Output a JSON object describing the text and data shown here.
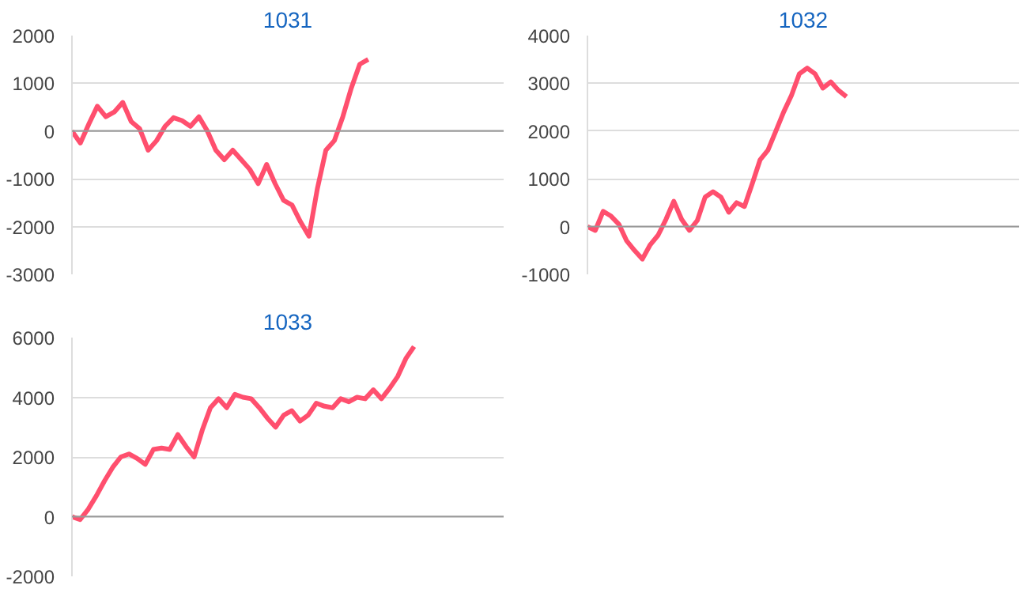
{
  "chart_data": [
    {
      "type": "line",
      "title": "1031",
      "categories": [
        null,
        null,
        null,
        null,
        null,
        null,
        null,
        null,
        null,
        null,
        null,
        null,
        null,
        null,
        null,
        null,
        null,
        null,
        null,
        null,
        null,
        null,
        null,
        null,
        null,
        null,
        null,
        null,
        null,
        null,
        null,
        null,
        null,
        null,
        null,
        null,
        null,
        null,
        null,
        null,
        null,
        null,
        null,
        null,
        null,
        null,
        null,
        null,
        null,
        null,
        null,
        null
      ],
      "series": [
        {
          "color": "#ff4f6e",
          "values": [
            0,
            -250,
            150,
            520,
            300,
            400,
            600,
            200,
            50,
            -400,
            -200,
            100,
            280,
            220,
            100,
            300,
            0,
            -400,
            -600,
            -400,
            -600,
            -800,
            -1100,
            -700,
            -1100,
            -1450,
            -1550,
            -1900,
            -2200,
            -1200,
            -400,
            -200,
            300,
            900,
            1400,
            1500,
            null,
            null,
            null,
            null,
            null,
            null,
            null,
            null,
            null,
            null,
            null,
            null,
            null,
            null,
            null,
            null
          ]
        }
      ],
      "ylim": [
        -3000,
        2000
      ],
      "yticks": [
        -3000,
        -2000,
        -1000,
        0,
        1000,
        2000
      ],
      "grid": "y",
      "tick_labels": "y",
      "line_style": "solid",
      "marker": "none"
    },
    {
      "type": "line",
      "title": "1032",
      "categories": [
        null,
        null,
        null,
        null,
        null,
        null,
        null,
        null,
        null,
        null,
        null,
        null,
        null,
        null,
        null,
        null,
        null,
        null,
        null,
        null,
        null,
        null,
        null,
        null,
        null,
        null,
        null,
        null,
        null,
        null,
        null,
        null,
        null,
        null,
        null,
        null,
        null,
        null,
        null,
        null,
        null,
        null,
        null,
        null,
        null,
        null,
        null,
        null,
        null,
        null,
        null,
        null,
        null,
        null,
        null,
        null
      ],
      "series": [
        {
          "color": "#ff4f6e",
          "values": [
            0,
            -80,
            320,
            220,
            50,
            -300,
            -500,
            -680,
            -380,
            -180,
            150,
            530,
            150,
            -80,
            130,
            620,
            730,
            620,
            300,
            500,
            420,
            900,
            1400,
            1600,
            2000,
            2400,
            2750,
            3200,
            3320,
            3200,
            2900,
            3030,
            2850,
            2720,
            null,
            null,
            null,
            null,
            null,
            null,
            null,
            null,
            null,
            null,
            null,
            null,
            null,
            null,
            null,
            null,
            null,
            null,
            null,
            null,
            null,
            null
          ]
        }
      ],
      "ylim": [
        -1000,
        4000
      ],
      "yticks": [
        -1000,
        0,
        1000,
        2000,
        3000,
        4000
      ],
      "grid": "y",
      "tick_labels": "y",
      "line_style": "solid",
      "marker": "none"
    },
    {
      "type": "line",
      "title": "1033",
      "categories": [
        null,
        null,
        null,
        null,
        null,
        null,
        null,
        null,
        null,
        null,
        null,
        null,
        null,
        null,
        null,
        null,
        null,
        null,
        null,
        null,
        null,
        null,
        null,
        null,
        null,
        null,
        null,
        null,
        null,
        null,
        null,
        null,
        null,
        null,
        null,
        null,
        null,
        null,
        null,
        null,
        null,
        null,
        null,
        null,
        null,
        null,
        null,
        null,
        null,
        null,
        null,
        null,
        null,
        null
      ],
      "series": [
        {
          "color": "#ff4f6e",
          "values": [
            0,
            -100,
            250,
            700,
            1200,
            1650,
            2000,
            2100,
            1950,
            1750,
            2250,
            2300,
            2250,
            2750,
            2350,
            2000,
            2900,
            3650,
            3950,
            3650,
            4100,
            4000,
            3950,
            3650,
            3300,
            3000,
            3400,
            3550,
            3200,
            3400,
            3800,
            3700,
            3650,
            3950,
            3850,
            4000,
            3950,
            4250,
            3950,
            4300,
            4700,
            5300,
            5700,
            null,
            null,
            null,
            null,
            null,
            null,
            null,
            null,
            null,
            null,
            null
          ]
        }
      ],
      "ylim": [
        -2000,
        6000
      ],
      "yticks": [
        -2000,
        0,
        2000,
        4000,
        6000
      ],
      "grid": "y",
      "tick_labels": "y",
      "line_style": "solid",
      "marker": "none"
    }
  ]
}
